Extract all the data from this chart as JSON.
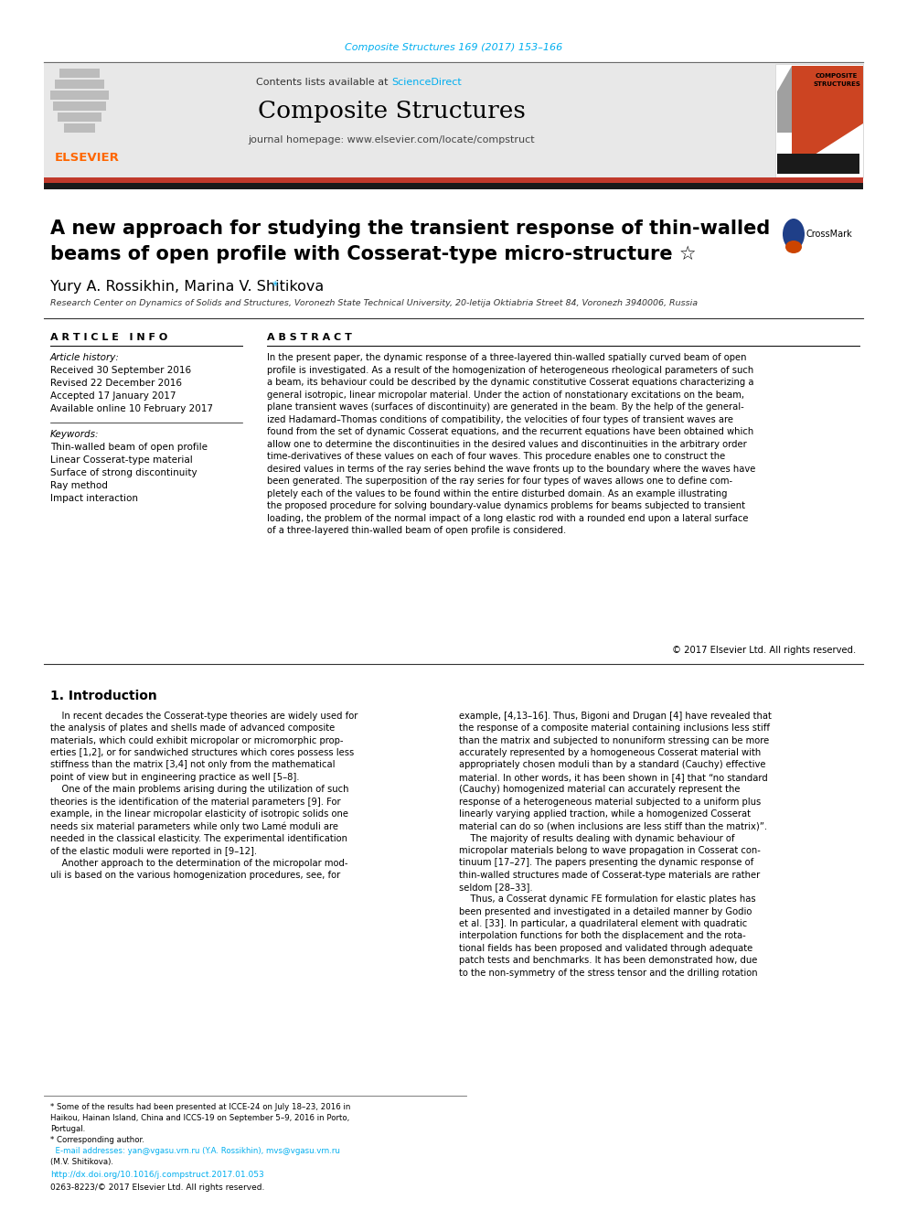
{
  "journal_ref": "Composite Structures 169 (2017) 153–166",
  "journal_name": "Composite Structures",
  "contents_text": "Contents lists available at ",
  "sciencedirect_text": "ScienceDirect",
  "journal_homepage": "journal homepage: www.elsevier.com/locate/compstruct",
  "title_line1": "A new approach for studying the transient response of thin-walled",
  "title_line2": "beams of open profile with Cosserat-type micro-structure ☆",
  "authors": "Yury A. Rossikhin, Marina V. Shitikova",
  "author_asterisk": "*",
  "affiliation": "Research Center on Dynamics of Solids and Structures, Voronezh State Technical University, 20-letija Oktiabria Street 84, Voronezh 3940006, Russia",
  "article_info_label": "A R T I C L E   I N F O",
  "abstract_label": "A B S T R A C T",
  "article_history_label": "Article history:",
  "received": "Received 30 September 2016",
  "revised": "Revised 22 December 2016",
  "accepted": "Accepted 17 January 2017",
  "available": "Available online 10 February 2017",
  "keywords_label": "Keywords:",
  "keywords": [
    "Thin-walled beam of open profile",
    "Linear Cosserat-type material",
    "Surface of strong discontinuity",
    "Ray method",
    "Impact interaction"
  ],
  "abstract_text": "In the present paper, the dynamic response of a three-layered thin-walled spatially curved beam of open\nprofile is investigated. As a result of the homogenization of heterogeneous rheological parameters of such\na beam, its behaviour could be described by the dynamic constitutive Cosserat equations characterizing a\ngeneral isotropic, linear micropolar material. Under the action of nonstationary excitations on the beam,\nplane transient waves (surfaces of discontinuity) are generated in the beam. By the help of the general-\nized Hadamard–Thomas conditions of compatibility, the velocities of four types of transient waves are\nfound from the set of dynamic Cosserat equations, and the recurrent equations have been obtained which\nallow one to determine the discontinuities in the desired values and discontinuities in the arbitrary order\ntime-derivatives of these values on each of four waves. This procedure enables one to construct the\ndesired values in terms of the ray series behind the wave fronts up to the boundary where the waves have\nbeen generated. The superposition of the ray series for four types of waves allows one to define com-\npletely each of the values to be found within the entire disturbed domain. As an example illustrating\nthe proposed procedure for solving boundary-value dynamics problems for beams subjected to transient\nloading, the problem of the normal impact of a long elastic rod with a rounded end upon a lateral surface\nof a three-layered thin-walled beam of open profile is considered.",
  "copyright": "© 2017 Elsevier Ltd. All rights reserved.",
  "intro_heading": "1. Introduction",
  "intro_col1": "    In recent decades the Cosserat-type theories are widely used for\nthe analysis of plates and shells made of advanced composite\nmaterials, which could exhibit micropolar or micromorphic prop-\nerties [1,2], or for sandwiched structures which cores possess less\nstiffness than the matrix [3,4] not only from the mathematical\npoint of view but in engineering practice as well [5–8].\n    One of the main problems arising during the utilization of such\ntheories is the identification of the material parameters [9]. For\nexample, in the linear micropolar elasticity of isotropic solids one\nneeds six material parameters while only two Lamé moduli are\nneeded in the classical elasticity. The experimental identification\nof the elastic moduli were reported in [9–12].\n    Another approach to the determination of the micropolar mod-\nuli is based on the various homogenization procedures, see, for",
  "intro_col2": "example, [4,13–16]. Thus, Bigoni and Drugan [4] have revealed that\nthe response of a composite material containing inclusions less stiff\nthan the matrix and subjected to nonuniform stressing can be more\naccurately represented by a homogeneous Cosserat material with\nappropriately chosen moduli than by a standard (Cauchy) effective\nmaterial. In other words, it has been shown in [4] that “no standard\n(Cauchy) homogenized material can accurately represent the\nresponse of a heterogeneous material subjected to a uniform plus\nlinearly varying applied traction, while a homogenized Cosserat\nmaterial can do so (when inclusions are less stiff than the matrix)”.\n    The majority of results dealing with dynamic behaviour of\nmicropolar materials belong to wave propagation in Cosserat con-\ntinuum [17–27]. The papers presenting the dynamic response of\nthin-walled structures made of Cosserat-type materials are rather\nseldom [28–33].\n    Thus, a Cosserat dynamic FE formulation for elastic plates has\nbeen presented and investigated in a detailed manner by Godio\net al. [33]. In particular, a quadrilateral element with quadratic\ninterpolation functions for both the displacement and the rota-\ntional fields has been proposed and validated through adequate\npatch tests and benchmarks. It has been demonstrated how, due\nto the non-symmetry of the stress tensor and the drilling rotation",
  "fn1a": "* Some of the results had been presented at ICCE-24 on July 18–23, 2016 in",
  "fn1b": "Haikou, Hainan Island, China and ICCS-19 on September 5–9, 2016 in Porto,",
  "fn1c": "Portugal.",
  "fn2": "* Corresponding author.",
  "fn3a": "  E-mail addresses: yan@vgasu.vrn.ru (Y.A. Rossikhin), mvs@vgasu.vrn.ru",
  "fn3b": "(M.V. Shitikova).",
  "doi_text": "http://dx.doi.org/10.1016/j.compstruct.2017.01.053",
  "issn_text": "0263-8223/© 2017 Elsevier Ltd. All rights reserved.",
  "link_color": "#00AEEF",
  "elsevier_orange": "#FF6600",
  "header_bg": "#E8E8E8",
  "orange_bar_color": "#C0392B",
  "black_bar_color": "#1A1A1A",
  "bg_color": "#FFFFFF"
}
